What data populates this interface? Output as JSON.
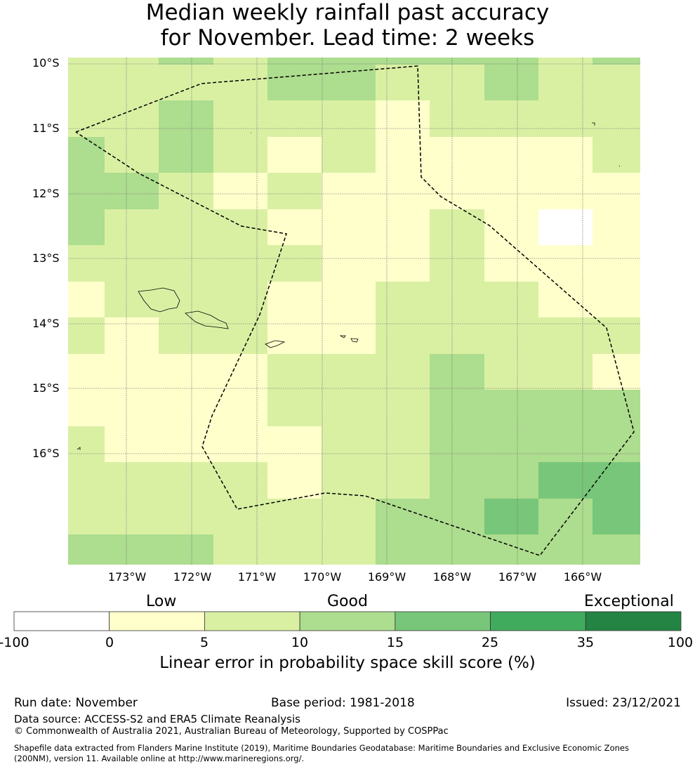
{
  "title_line1": "Median weekly rainfall past accuracy",
  "title_line2": "for November. Lead time: 2 weeks",
  "lat_labels": [
    "10°S",
    "11°S",
    "12°S",
    "13°S",
    "14°S",
    "15°S",
    "16°S"
  ],
  "lon_labels": [
    "173°W",
    "172°W",
    "171°W",
    "170°W",
    "169°W",
    "168°W",
    "167°W",
    "166°W"
  ],
  "colorbar": {
    "category_labels": [
      "Low",
      "Good",
      "Exceptional"
    ],
    "tick_labels": [
      "-100",
      "0",
      "5",
      "10",
      "15",
      "25",
      "35",
      "100"
    ],
    "colors": [
      "#ffffff",
      "#ffffcc",
      "#d9f0a3",
      "#addd8e",
      "#78c679",
      "#41ab5d",
      "#238443"
    ],
    "axis_label": "Linear error in probability space skill score (%)"
  },
  "chart_data": {
    "type": "heatmap",
    "description_units": "color class index into colorbar.colors (0:<0, 1:0-5, 2:5-10, 3:10-15, 4:15-25, 5:25-35, 6:35-100)",
    "rows_north_to_south": [
      [
        2,
        2,
        3,
        2,
        3,
        3,
        3,
        3,
        3,
        2,
        3
      ],
      [
        2,
        2,
        2,
        2,
        3,
        3,
        2,
        2,
        3,
        2,
        2
      ],
      [
        2,
        2,
        3,
        2,
        2,
        2,
        1,
        2,
        2,
        2,
        2
      ],
      [
        3,
        2,
        3,
        2,
        1,
        2,
        1,
        1,
        1,
        1,
        2
      ],
      [
        3,
        3,
        2,
        1,
        2,
        1,
        1,
        1,
        1,
        1,
        1
      ],
      [
        3,
        2,
        2,
        2,
        1,
        1,
        1,
        2,
        1,
        0,
        1
      ],
      [
        2,
        2,
        2,
        2,
        2,
        1,
        1,
        2,
        1,
        1,
        1
      ],
      [
        1,
        2,
        2,
        2,
        1,
        1,
        2,
        2,
        2,
        1,
        1
      ],
      [
        2,
        1,
        2,
        2,
        1,
        1,
        2,
        2,
        2,
        2,
        2
      ],
      [
        1,
        1,
        1,
        1,
        2,
        2,
        2,
        3,
        2,
        2,
        1
      ],
      [
        1,
        1,
        1,
        1,
        2,
        2,
        2,
        3,
        3,
        3,
        3
      ],
      [
        2,
        1,
        1,
        1,
        1,
        2,
        2,
        3,
        3,
        3,
        3
      ],
      [
        2,
        2,
        2,
        2,
        1,
        2,
        2,
        3,
        3,
        4,
        4
      ],
      [
        2,
        2,
        2,
        2,
        2,
        2,
        3,
        3,
        4,
        3,
        4
      ],
      [
        3,
        3,
        3,
        2,
        2,
        2,
        3,
        3,
        3,
        3,
        3
      ]
    ]
  },
  "footer": {
    "run_date": "Run date: November",
    "base_period": "Base period: 1981-2018",
    "issued": "Issued: 23/12/2021",
    "data_source": "Data source: ACCESS-S2 and ERA5 Climate Reanalysis",
    "copyright": "© Commonwealth of Australia 2021, Australian Bureau of Meteorology, Supported by COSPPac",
    "shapefile_line1": "Shapefile data extracted from Flanders Marine Institute (2019), Maritime Boundaries Geodatabase: Maritime Boundaries and Exclusive Economic Zones",
    "shapefile_line2": "(200NM), version 11. Available online at http://www.marineregions.org/."
  }
}
